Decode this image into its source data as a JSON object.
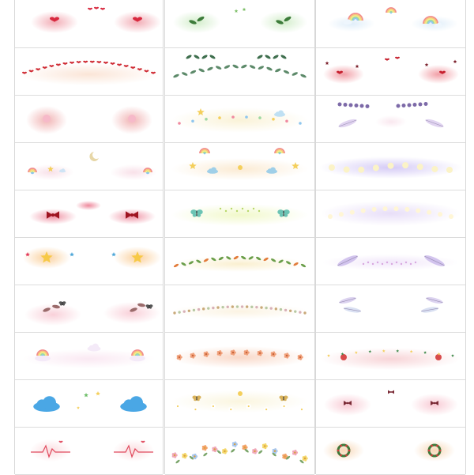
{
  "sheet": {
    "title": "",
    "colors": {
      "border": "#d8d8d8",
      "background": "#ffffff"
    },
    "columns": [
      {
        "cells": [
          {
            "motif": "red-hearts-blush"
          },
          {
            "motif": "heart-garland"
          },
          {
            "motif": "cupcake-blush"
          },
          {
            "motif": "moon-star-charms"
          },
          {
            "motif": "red-bow-blush"
          },
          {
            "motif": "star-faces-orange"
          },
          {
            "motif": "pink-sprigs"
          },
          {
            "motif": "pastel-rainbow-clouds"
          },
          {
            "motif": "blue-clouds-stars"
          },
          {
            "motif": "heartbeat-lines"
          }
        ]
      },
      {
        "cells": [
          {
            "motif": "green-glitter-leaves"
          },
          {
            "motif": "eucalyptus-garland"
          },
          {
            "motif": "sun-cloud-faces"
          },
          {
            "motif": "rainbow-star-clouds"
          },
          {
            "motif": "green-butterflies"
          },
          {
            "motif": "bird-leaf-garland"
          },
          {
            "motif": "bead-chain"
          },
          {
            "motif": "peach-flower-garland"
          },
          {
            "motif": "butterfly-bee-daisies"
          },
          {
            "motif": "wildflower-bouquet"
          }
        ]
      },
      {
        "cells": [
          {
            "motif": "rainbow-clouds"
          },
          {
            "motif": "red-hearts-stars"
          },
          {
            "motif": "lilac-feathers-pearls"
          },
          {
            "motif": "purple-glow-pearls"
          },
          {
            "motif": "pearl-sparkle-garland"
          },
          {
            "motif": "purple-feather-arcs"
          },
          {
            "motif": "feather-wings"
          },
          {
            "motif": "christmas-stockings"
          },
          {
            "motif": "pink-bow-blush"
          },
          {
            "motif": "wreath-blush"
          }
        ]
      }
    ]
  }
}
